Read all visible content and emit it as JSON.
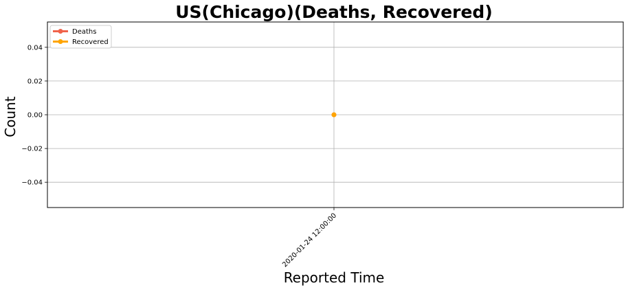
{
  "chart_data": {
    "type": "line",
    "title": "US(Chicago)(Deaths, Recovered)",
    "xlabel": "Reported Time",
    "ylabel": "Count",
    "categories": [
      "2020-01-24 12:00:00"
    ],
    "ylim": [
      -0.055,
      0.055
    ],
    "yticks": [
      0.04,
      0.02,
      0.0,
      -0.02,
      -0.04
    ],
    "ytick_labels": [
      "0.04",
      "0.02",
      "0.00",
      "−0.02",
      "−0.04"
    ],
    "grid": true,
    "legend_position": "top-left",
    "series": [
      {
        "name": "Deaths",
        "values": [
          0
        ],
        "color": "#f0634b"
      },
      {
        "name": "Recovered",
        "values": [
          0
        ],
        "color": "#ffa500"
      }
    ]
  }
}
